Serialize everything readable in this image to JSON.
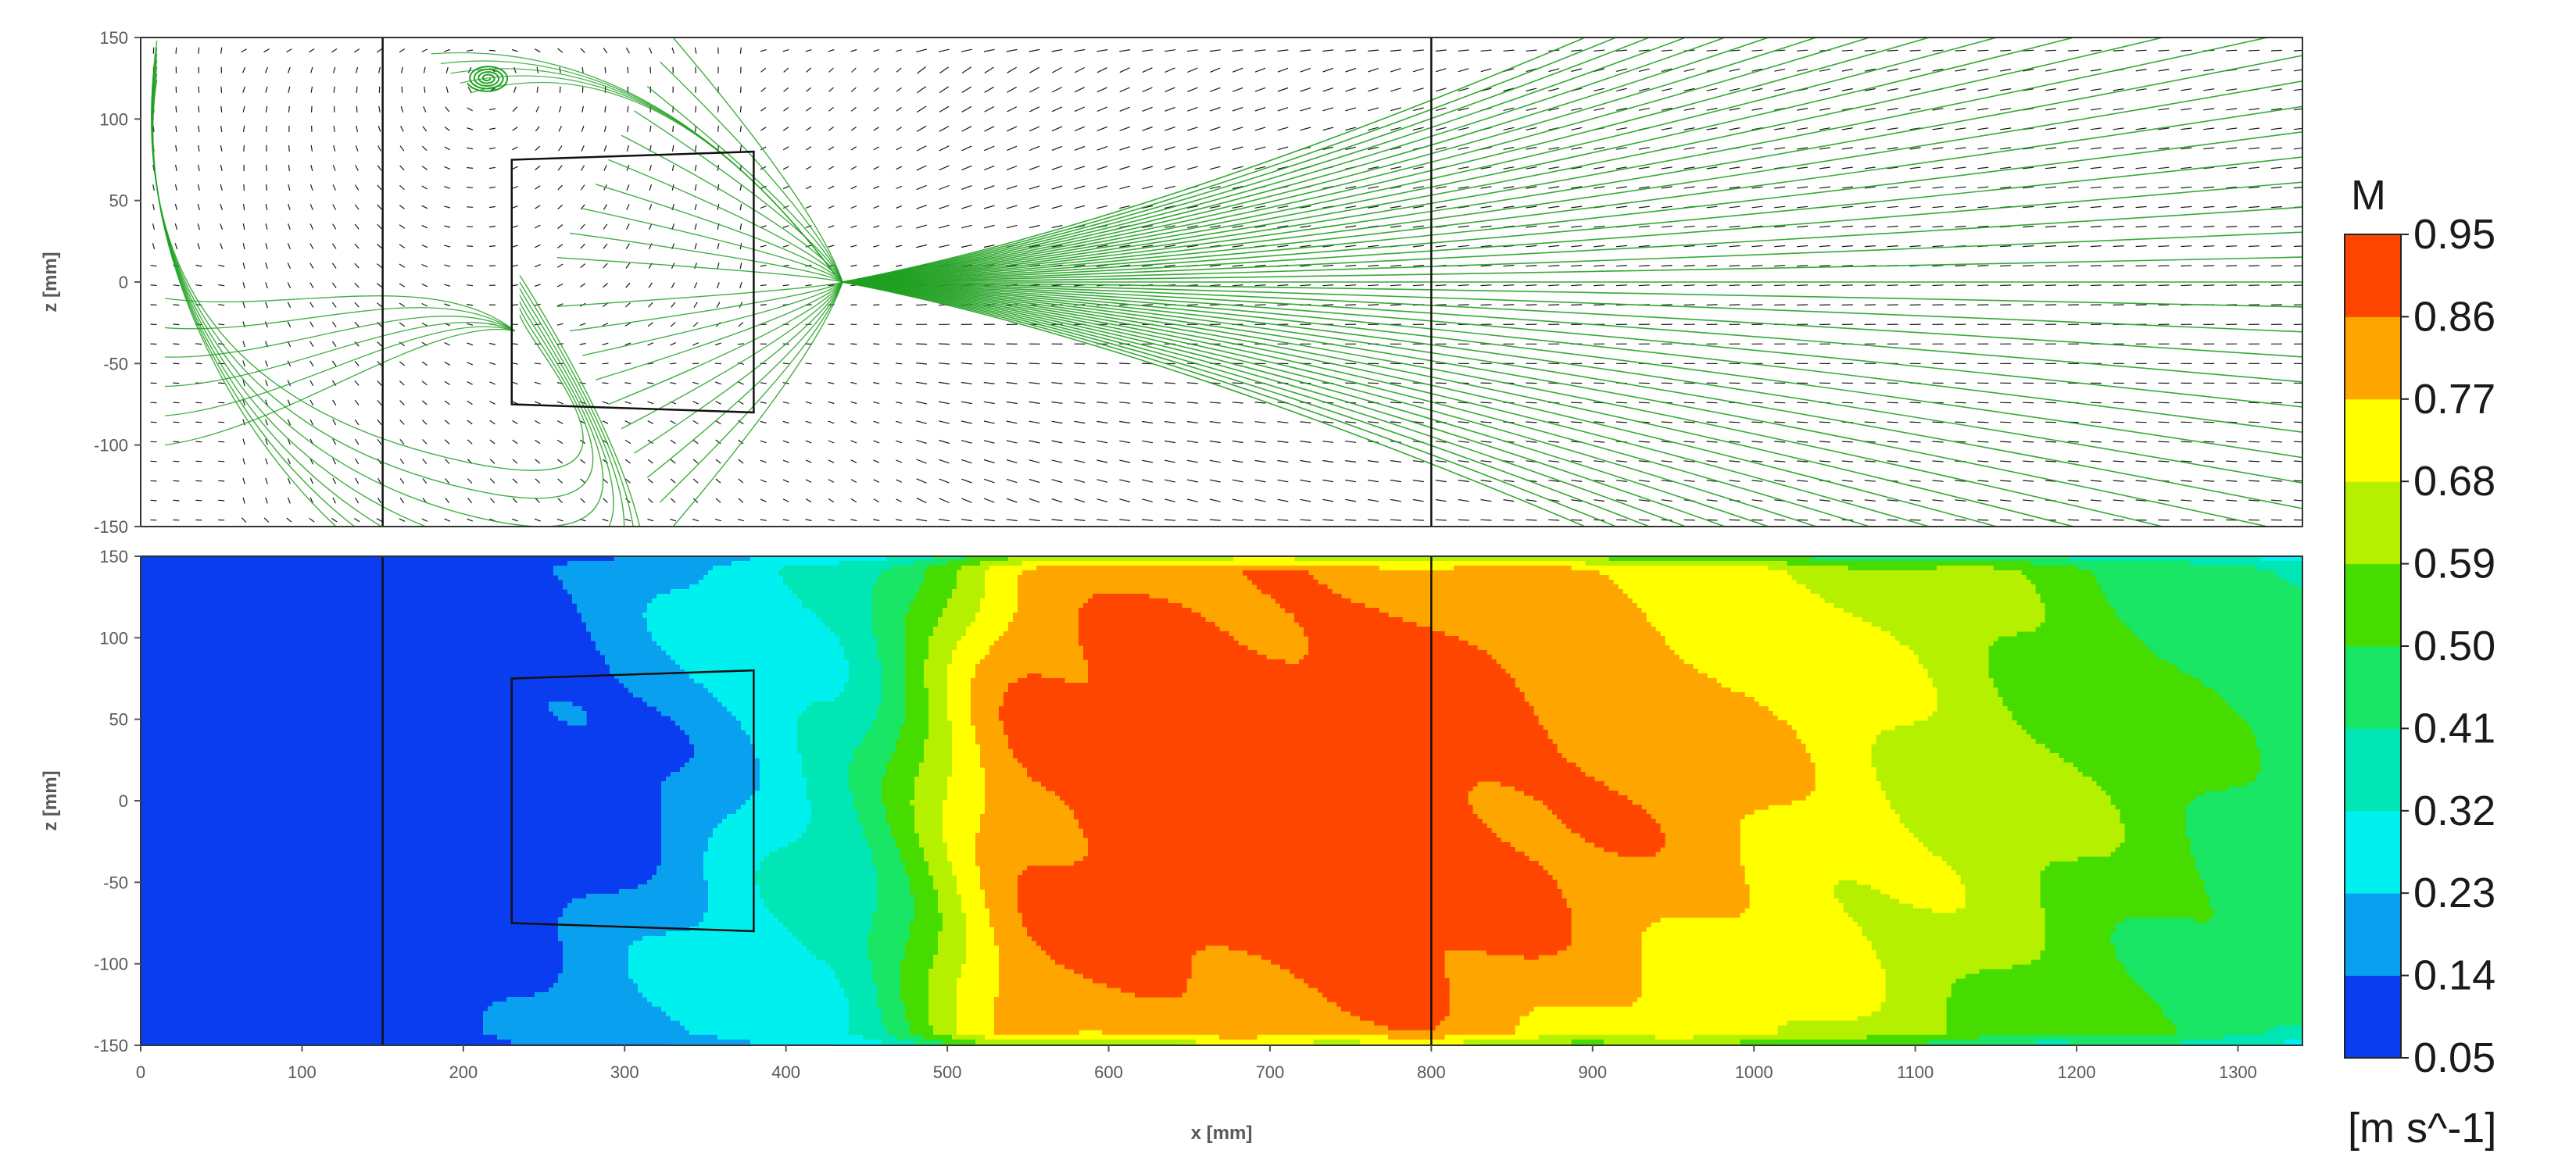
{
  "chart_data": [
    {
      "type": "vector-field",
      "panel": "top",
      "xlabel": "",
      "ylabel": "z [mm]",
      "xlim": [
        0,
        1340
      ],
      "ylim": [
        -150,
        150
      ],
      "yticks": [
        150,
        100,
        50,
        0,
        -50,
        -100,
        -150
      ],
      "colors": {
        "vectors": "#000000",
        "streamlines": "#20a020"
      },
      "vertical_lines_x": [
        150,
        800
      ],
      "box": {
        "corners": [
          [
            230,
            75
          ],
          [
            380,
            80
          ],
          [
            380,
            -80
          ],
          [
            230,
            -75
          ]
        ]
      },
      "vortex_center": [
        215,
        125
      ],
      "stagnation_point": [
        435,
        0
      ]
    },
    {
      "type": "heatmap",
      "panel": "bottom",
      "xlabel": "x [mm]",
      "ylabel": "z [mm]",
      "xlim": [
        0,
        1340
      ],
      "ylim": [
        -150,
        150
      ],
      "xticks": [
        0,
        100,
        200,
        300,
        400,
        500,
        600,
        700,
        800,
        900,
        1000,
        1100,
        1200,
        1300
      ],
      "yticks": [
        150,
        100,
        50,
        0,
        -50,
        -100,
        -150
      ],
      "vertical_lines_x": [
        150,
        800
      ],
      "box": {
        "corners": [
          [
            230,
            75
          ],
          [
            380,
            80
          ],
          [
            380,
            -80
          ],
          [
            230,
            -75
          ]
        ]
      },
      "core_region": {
        "x_range": [
          510,
          860
        ],
        "z_range": [
          -140,
          140
        ],
        "level": "0.86-0.95"
      },
      "colorbar": {
        "title": "M",
        "units": "[m s^-1]",
        "levels": [
          0.05,
          0.14,
          0.23,
          0.32,
          0.41,
          0.5,
          0.59,
          0.68,
          0.77,
          0.86,
          0.95
        ],
        "level_labels": [
          "0.05",
          "0.14",
          "0.23",
          "0.32",
          "0.41",
          "0.50",
          "0.59",
          "0.68",
          "0.77",
          "0.86",
          "0.95"
        ],
        "colors": [
          "#0a3cf0",
          "#0aa0f0",
          "#00f0f0",
          "#00e6b4",
          "#18e664",
          "#46dc00",
          "#b4f000",
          "#ffff00",
          "#ffa500",
          "#ff4600"
        ]
      }
    }
  ]
}
